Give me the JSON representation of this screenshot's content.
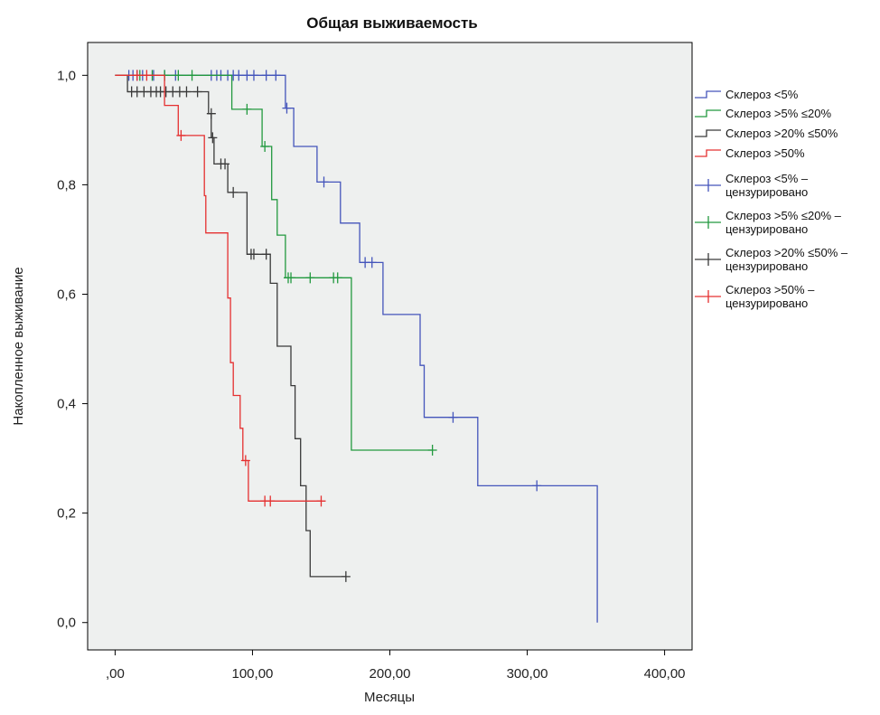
{
  "chart_data": {
    "type": "line",
    "subtype": "kaplan-meier-step",
    "title": "Общая выживаемость",
    "xlabel": "Месяцы",
    "ylabel": "Накопленное выживание",
    "xlim": [
      -20,
      420
    ],
    "ylim": [
      -0.05,
      1.06
    ],
    "x_ticks": [
      0,
      100,
      200,
      300,
      400
    ],
    "x_tick_labels": [
      ",00",
      "100,00",
      "200,00",
      "300,00",
      "400,00"
    ],
    "y_ticks": [
      0,
      0.2,
      0.4,
      0.6,
      0.8,
      1.0
    ],
    "y_tick_labels": [
      "0,0",
      "0,2",
      "0,4",
      "0,6",
      "0,8",
      "1,0"
    ],
    "grid": false,
    "plot_background": "#eef0ef",
    "legend_position": "right",
    "series": [
      {
        "name": "Склероз <5%",
        "censored_name": "Склероз <5% – цензурировано",
        "color": "#4455bb",
        "points": [
          [
            0,
            1.0
          ],
          [
            124,
            1.0
          ],
          [
            124,
            0.94
          ],
          [
            130,
            0.94
          ],
          [
            130,
            0.87
          ],
          [
            147,
            0.87
          ],
          [
            147,
            0.805
          ],
          [
            164,
            0.805
          ],
          [
            164,
            0.73
          ],
          [
            178,
            0.73
          ],
          [
            178,
            0.658
          ],
          [
            195,
            0.658
          ],
          [
            195,
            0.563
          ],
          [
            222,
            0.563
          ],
          [
            222,
            0.47
          ],
          [
            225,
            0.47
          ],
          [
            225,
            0.375
          ],
          [
            264,
            0.375
          ],
          [
            264,
            0.25
          ],
          [
            351,
            0.25
          ],
          [
            351,
            0.0
          ]
        ],
        "censored": [
          [
            10,
            1.0
          ],
          [
            13,
            1.0
          ],
          [
            16,
            1.0
          ],
          [
            20,
            1.0
          ],
          [
            28,
            1.0
          ],
          [
            36,
            1.0
          ],
          [
            44,
            1.0
          ],
          [
            70,
            1.0
          ],
          [
            74,
            1.0
          ],
          [
            77,
            1.0
          ],
          [
            82,
            1.0
          ],
          [
            86,
            1.0
          ],
          [
            90,
            1.0
          ],
          [
            96,
            1.0
          ],
          [
            101,
            1.0
          ],
          [
            110,
            1.0
          ],
          [
            117,
            1.0
          ],
          [
            125,
            0.94
          ],
          [
            152,
            0.805
          ],
          [
            182,
            0.658
          ],
          [
            187,
            0.658
          ],
          [
            246,
            0.375
          ],
          [
            307,
            0.25
          ]
        ]
      },
      {
        "name": "Склероз >5% ≤20%",
        "censored_name": "Склероз >5% ≤20% – цензурировано",
        "color": "#22993f",
        "points": [
          [
            0,
            1.0
          ],
          [
            85,
            1.0
          ],
          [
            85,
            0.938
          ],
          [
            107,
            0.938
          ],
          [
            107,
            0.87
          ],
          [
            114,
            0.87
          ],
          [
            114,
            0.773
          ],
          [
            118,
            0.773
          ],
          [
            118,
            0.708
          ],
          [
            124,
            0.708
          ],
          [
            124,
            0.63
          ],
          [
            172,
            0.63
          ],
          [
            172,
            0.315
          ],
          [
            231,
            0.315
          ]
        ],
        "censored": [
          [
            18,
            1.0
          ],
          [
            27,
            1.0
          ],
          [
            36,
            1.0
          ],
          [
            46,
            1.0
          ],
          [
            56,
            1.0
          ],
          [
            96,
            0.938
          ],
          [
            109,
            0.87
          ],
          [
            126,
            0.63
          ],
          [
            128,
            0.63
          ],
          [
            142,
            0.63
          ],
          [
            159,
            0.63
          ],
          [
            162,
            0.63
          ],
          [
            231,
            0.315
          ]
        ]
      },
      {
        "name": "Склероз >20% ≤50%",
        "censored_name": "Склероз >20% ≤50% – цензурировано",
        "color": "#3a3a3a",
        "points": [
          [
            0,
            1.0
          ],
          [
            9,
            1.0
          ],
          [
            9,
            0.97
          ],
          [
            68,
            0.97
          ],
          [
            68,
            0.93
          ],
          [
            70,
            0.93
          ],
          [
            70,
            0.886
          ],
          [
            72,
            0.886
          ],
          [
            72,
            0.838
          ],
          [
            82,
            0.838
          ],
          [
            82,
            0.786
          ],
          [
            96,
            0.786
          ],
          [
            96,
            0.673
          ],
          [
            113,
            0.673
          ],
          [
            113,
            0.62
          ],
          [
            118,
            0.62
          ],
          [
            118,
            0.505
          ],
          [
            128,
            0.505
          ],
          [
            128,
            0.433
          ],
          [
            131,
            0.433
          ],
          [
            131,
            0.336
          ],
          [
            135,
            0.336
          ],
          [
            135,
            0.25
          ],
          [
            139,
            0.25
          ],
          [
            139,
            0.168
          ],
          [
            142,
            0.168
          ],
          [
            142,
            0.084
          ],
          [
            168,
            0.084
          ]
        ],
        "censored": [
          [
            12,
            0.97
          ],
          [
            16,
            0.97
          ],
          [
            21,
            0.97
          ],
          [
            26,
            0.97
          ],
          [
            30,
            0.97
          ],
          [
            33,
            0.97
          ],
          [
            37,
            0.97
          ],
          [
            42,
            0.97
          ],
          [
            47,
            0.97
          ],
          [
            52,
            0.97
          ],
          [
            60,
            0.97
          ],
          [
            70,
            0.93
          ],
          [
            71,
            0.886
          ],
          [
            77,
            0.838
          ],
          [
            80,
            0.838
          ],
          [
            86,
            0.786
          ],
          [
            99,
            0.673
          ],
          [
            101,
            0.673
          ],
          [
            110,
            0.673
          ],
          [
            168,
            0.084
          ]
        ]
      },
      {
        "name": "Склероз >50%",
        "censored_name": "Склероз >50% – цензурировано",
        "color": "#e53030",
        "points": [
          [
            0,
            1.0
          ],
          [
            36,
            1.0
          ],
          [
            36,
            0.945
          ],
          [
            46,
            0.945
          ],
          [
            46,
            0.89
          ],
          [
            65,
            0.89
          ],
          [
            65,
            0.78
          ],
          [
            66,
            0.78
          ],
          [
            66,
            0.712
          ],
          [
            82,
            0.712
          ],
          [
            82,
            0.593
          ],
          [
            84,
            0.593
          ],
          [
            84,
            0.475
          ],
          [
            86,
            0.475
          ],
          [
            86,
            0.415
          ],
          [
            91,
            0.415
          ],
          [
            91,
            0.355
          ],
          [
            93,
            0.355
          ],
          [
            93,
            0.296
          ],
          [
            97,
            0.296
          ],
          [
            97,
            0.222
          ],
          [
            150,
            0.222
          ]
        ],
        "censored": [
          [
            16,
            1.0
          ],
          [
            23,
            1.0
          ],
          [
            48,
            0.89
          ],
          [
            95,
            0.296
          ],
          [
            109,
            0.222
          ],
          [
            113,
            0.222
          ],
          [
            150,
            0.222
          ]
        ]
      }
    ]
  }
}
